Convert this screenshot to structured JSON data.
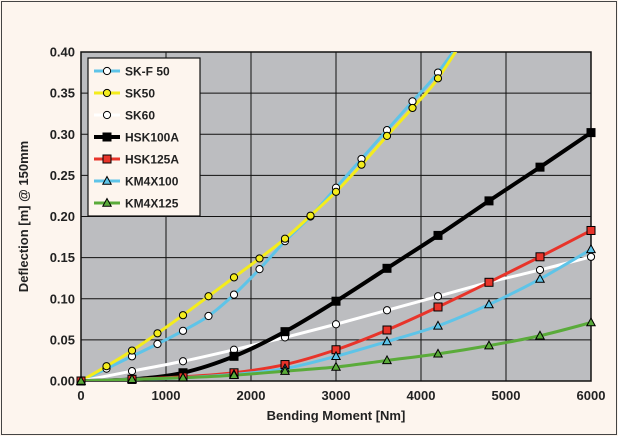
{
  "chart_data": {
    "type": "line",
    "xlabel": "Bending Moment [Nm]",
    "ylabel": "Deflection [m] @ 150mm",
    "xlim": [
      0,
      6000
    ],
    "ylim": [
      0,
      0.4
    ],
    "x_ticks": [
      "0",
      "1000",
      "2000",
      "3000",
      "4000",
      "5000",
      "6000"
    ],
    "y_ticks": [
      "0.00",
      "0.05",
      "0.10",
      "0.15",
      "0.20",
      "0.25",
      "0.30",
      "0.35",
      "0.40"
    ],
    "grid": true,
    "legend_position": "top-left",
    "series": [
      {
        "name": "SK-F 50",
        "color": "#5ec4e8",
        "marker": "circle",
        "marker_fill": "#ffffff",
        "points": [
          [
            0,
            0
          ],
          [
            300,
            0.015
          ],
          [
            600,
            0.03
          ],
          [
            900,
            0.045
          ],
          [
            1200,
            0.061
          ],
          [
            1500,
            0.079
          ],
          [
            1800,
            0.105
          ],
          [
            2100,
            0.136
          ],
          [
            2400,
            0.17
          ],
          [
            2700,
            0.2
          ],
          [
            3000,
            0.235
          ],
          [
            3300,
            0.27
          ],
          [
            3600,
            0.305
          ],
          [
            3900,
            0.34
          ],
          [
            4200,
            0.375
          ]
        ],
        "curve_extends_to": [
          4650,
          0.44
        ]
      },
      {
        "name": "SK50",
        "color": "#f4ec1c",
        "marker": "circle",
        "marker_fill": "#f4ec1c",
        "points": [
          [
            0,
            0
          ],
          [
            300,
            0.018
          ],
          [
            600,
            0.037
          ],
          [
            900,
            0.058
          ],
          [
            1200,
            0.08
          ],
          [
            1500,
            0.103
          ],
          [
            1800,
            0.126
          ],
          [
            2100,
            0.149
          ],
          [
            2400,
            0.173
          ],
          [
            2700,
            0.201
          ],
          [
            3000,
            0.23
          ],
          [
            3300,
            0.263
          ],
          [
            3600,
            0.298
          ],
          [
            3900,
            0.332
          ],
          [
            4200,
            0.368
          ]
        ],
        "curve_extends_to": [
          4650,
          0.44
        ]
      },
      {
        "name": "SK60",
        "color": "#ffffff",
        "marker": "circle",
        "marker_fill": "#ffffff",
        "points": [
          [
            0,
            0
          ],
          [
            600,
            0.012
          ],
          [
            1200,
            0.024
          ],
          [
            1800,
            0.038
          ],
          [
            2400,
            0.053
          ],
          [
            3000,
            0.069
          ],
          [
            3600,
            0.086
          ],
          [
            4200,
            0.103
          ],
          [
            4800,
            0.12
          ],
          [
            5400,
            0.135
          ],
          [
            6000,
            0.151
          ]
        ]
      },
      {
        "name": "HSK100A",
        "color": "#000000",
        "marker": "square",
        "marker_fill": "#000000",
        "points": [
          [
            0,
            0
          ],
          [
            600,
            0.002
          ],
          [
            1200,
            0.01
          ],
          [
            1800,
            0.03
          ],
          [
            2400,
            0.06
          ],
          [
            3000,
            0.097
          ],
          [
            3600,
            0.137
          ],
          [
            4200,
            0.177
          ],
          [
            4800,
            0.219
          ],
          [
            5400,
            0.26
          ],
          [
            6000,
            0.302
          ]
        ]
      },
      {
        "name": "HSK125A",
        "color": "#e8342a",
        "marker": "square",
        "marker_fill": "#e8342a",
        "points": [
          [
            0,
            0
          ],
          [
            600,
            0.002
          ],
          [
            1200,
            0.005
          ],
          [
            1800,
            0.01
          ],
          [
            2400,
            0.02
          ],
          [
            3000,
            0.038
          ],
          [
            3600,
            0.062
          ],
          [
            4200,
            0.09
          ],
          [
            4800,
            0.12
          ],
          [
            5400,
            0.151
          ],
          [
            6000,
            0.183
          ]
        ]
      },
      {
        "name": "KM4X100",
        "color": "#5ec4e8",
        "marker": "triangle",
        "marker_fill": "#5ec4e8",
        "points": [
          [
            0,
            0
          ],
          [
            600,
            0.002
          ],
          [
            1200,
            0.004
          ],
          [
            1800,
            0.008
          ],
          [
            2400,
            0.015
          ],
          [
            3000,
            0.03
          ],
          [
            3600,
            0.048
          ],
          [
            4200,
            0.067
          ],
          [
            4800,
            0.093
          ],
          [
            5400,
            0.124
          ],
          [
            6000,
            0.16
          ]
        ]
      },
      {
        "name": "KM4X125",
        "color": "#5aab3a",
        "marker": "triangle",
        "marker_fill": "#5aab3a",
        "points": [
          [
            0,
            0
          ],
          [
            600,
            0.002
          ],
          [
            1200,
            0.004
          ],
          [
            1800,
            0.007
          ],
          [
            2400,
            0.012
          ],
          [
            3000,
            0.017
          ],
          [
            3600,
            0.025
          ],
          [
            4200,
            0.033
          ],
          [
            4800,
            0.043
          ],
          [
            5400,
            0.055
          ],
          [
            6000,
            0.071
          ]
        ]
      }
    ]
  }
}
